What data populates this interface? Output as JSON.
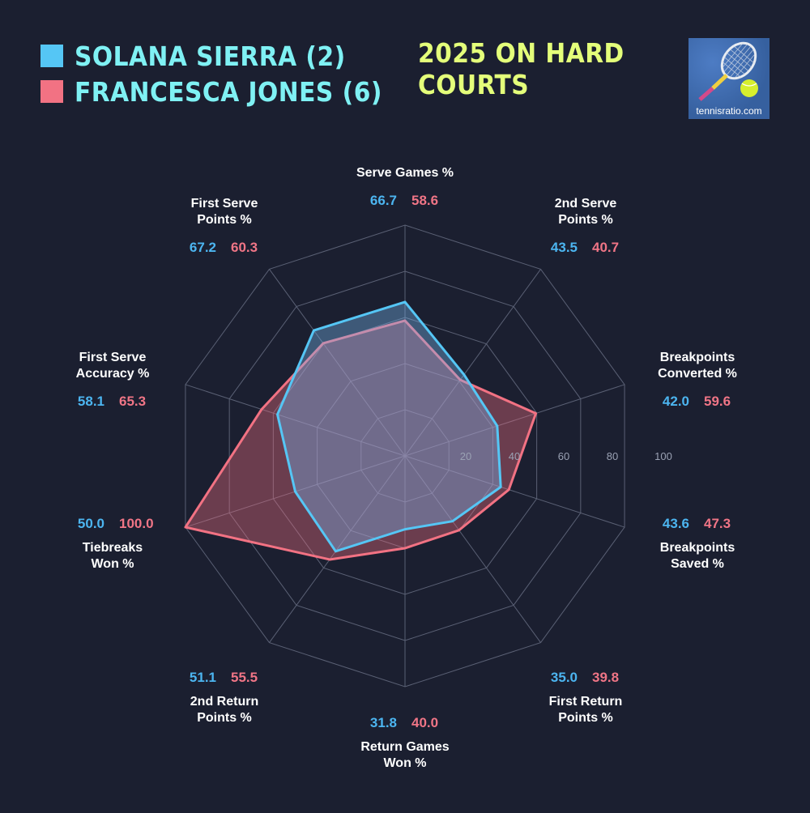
{
  "legend": [
    {
      "name": "SOLANA SIERRA (2)",
      "color": "#55c6f5"
    },
    {
      "name": "FRANCESCA JONES (6)",
      "color": "#f27283"
    }
  ],
  "title": "2025 ON HARD COURTS",
  "logo": {
    "icon": "tennis-racket-ball-icon",
    "text": "tennisratio.com"
  },
  "chart_data": {
    "type": "radar",
    "max": 100,
    "ticks": [
      20,
      40,
      60,
      80,
      100
    ],
    "axes": [
      {
        "label": [
          "Serve Games %"
        ],
        "a": 66.7,
        "b": 58.6
      },
      {
        "label": [
          "2nd Serve",
          "Points %"
        ],
        "a": 43.5,
        "b": 40.7
      },
      {
        "label": [
          "Breakpoints",
          "Converted %"
        ],
        "a": 42.0,
        "b": 59.6
      },
      {
        "label": [
          "Breakpoints",
          "Saved %"
        ],
        "a": 43.6,
        "b": 47.3
      },
      {
        "label": [
          "First Return",
          "Points %"
        ],
        "a": 35.0,
        "b": 39.8
      },
      {
        "label": [
          "Return Games",
          "Won %"
        ],
        "a": 31.8,
        "b": 40.0
      },
      {
        "label": [
          "2nd Return",
          "Points %"
        ],
        "a": 51.1,
        "b": 55.5
      },
      {
        "label": [
          "Tiebreaks",
          "Won %"
        ],
        "a": 50.0,
        "b": 100.0
      },
      {
        "label": [
          "First Serve",
          "Accuracy %"
        ],
        "a": 58.1,
        "b": 65.3
      },
      {
        "label": [
          "First Serve",
          "Points %"
        ],
        "a": 67.2,
        "b": 60.3
      }
    ],
    "series": [
      {
        "name": "SOLANA SIERRA (2)",
        "key": "a",
        "color": "#55c6f5"
      },
      {
        "name": "FRANCESCA JONES (6)",
        "key": "b",
        "color": "#f27283"
      }
    ]
  }
}
